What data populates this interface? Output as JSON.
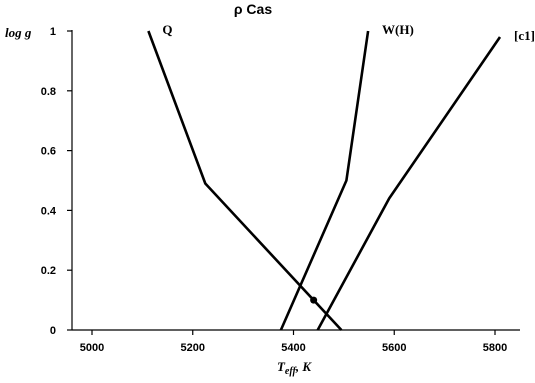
{
  "chart_data": {
    "type": "line",
    "title": "ρ Cas",
    "xlabel_main": "T",
    "xlabel_sub": "eff",
    "xlabel_unit": ", K",
    "ylabel": "log g",
    "xlim": [
      5000,
      5800
    ],
    "ylim": [
      0,
      1
    ],
    "x_ticks": [
      5000,
      5200,
      5400,
      5600,
      5800
    ],
    "y_ticks": [
      0,
      0.2,
      0.4,
      0.6,
      0.8,
      1
    ],
    "y_tick_labels": [
      "0",
      "0.2",
      "0.4",
      "0.6",
      "0.8",
      "1"
    ],
    "grid": false,
    "legend": "none",
    "series": [
      {
        "name": "Q",
        "points": [
          [
            5112,
            1.0
          ],
          [
            5225,
            0.49
          ],
          [
            5495,
            0.0
          ]
        ]
      },
      {
        "name": "W(H)",
        "points": [
          [
            5548,
            1.0
          ],
          [
            5505,
            0.5
          ],
          [
            5375,
            0.0
          ]
        ]
      },
      {
        "name": "[c1]",
        "points": [
          [
            5810,
            0.98
          ],
          [
            5590,
            0.44
          ],
          [
            5448,
            0.0
          ]
        ]
      }
    ],
    "marker": {
      "x": 5440,
      "y": 0.1
    }
  }
}
